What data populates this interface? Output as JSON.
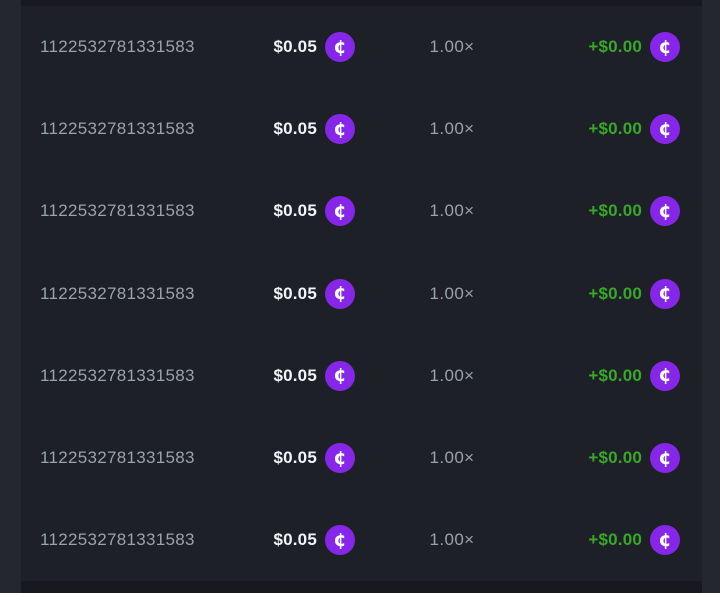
{
  "coin": {
    "glyph": "¢",
    "color": "#8626e8"
  },
  "colors": {
    "page_background": "#25272e",
    "row_background": "#1d2026",
    "between_rows_background": "#17191e",
    "id_text": "#99a2ad",
    "bet_amount_text": "#f2f4f7",
    "multiplier_text": "#99a2ad",
    "payout_text": "#38a829",
    "coin_background": "#8626e8"
  },
  "rows": [
    {
      "id": "1122532781331583",
      "bet": "$0.05",
      "multiplier": "1.00×",
      "payout": "+$0.00"
    },
    {
      "id": "1122532781331583",
      "bet": "$0.05",
      "multiplier": "1.00×",
      "payout": "+$0.00"
    },
    {
      "id": "1122532781331583",
      "bet": "$0.05",
      "multiplier": "1.00×",
      "payout": "+$0.00"
    },
    {
      "id": "1122532781331583",
      "bet": "$0.05",
      "multiplier": "1.00×",
      "payout": "+$0.00"
    },
    {
      "id": "1122532781331583",
      "bet": "$0.05",
      "multiplier": "1.00×",
      "payout": "+$0.00"
    },
    {
      "id": "1122532781331583",
      "bet": "$0.05",
      "multiplier": "1.00×",
      "payout": "+$0.00"
    },
    {
      "id": "1122532781331583",
      "bet": "$0.05",
      "multiplier": "1.00×",
      "payout": "+$0.00"
    }
  ]
}
